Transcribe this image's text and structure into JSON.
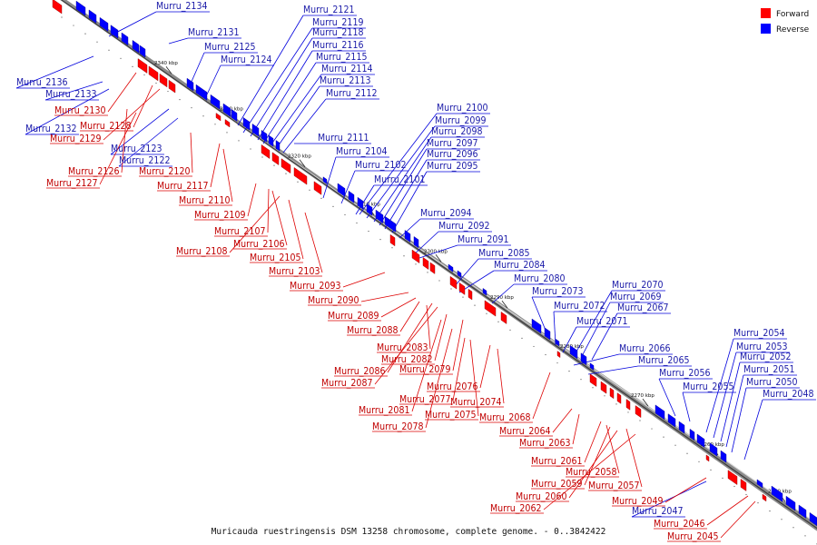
{
  "caption": "Muricauda ruestringensis DSM 13258 chromosome, complete genome. - 0..3842422",
  "legend": [
    {
      "label": "Forward",
      "color": "#ff0000"
    },
    {
      "label": "Reverse",
      "color": "#0000ff"
    }
  ],
  "colors": {
    "forward": "#ff0000",
    "reverse": "#0000ff",
    "forward_line": "#dd0000",
    "reverse_line": "#0000dd"
  },
  "ticks": [
    "2340 kbp",
    "2330 kbp",
    "2320 kbp",
    "2310 kbp",
    "2300 kbp",
    "2290 kbp",
    "2280 kbp",
    "2270 kbp",
    "2260 kbp",
    "2250 kbp"
  ],
  "reverse_labels": [
    "Murru_2134",
    "Murru_2131",
    "Murru_2125",
    "Murru_2124",
    "Murru_2121",
    "Murru_2119",
    "Murru_2118",
    "Murru_2116",
    "Murru_2115",
    "Murru_2114",
    "Murru_2113",
    "Murru_2112",
    "Murru_2136",
    "Murru_2133",
    "Murru_2132",
    "Murru_2123",
    "Murru_2122",
    "Murru_2111",
    "Murru_2104",
    "Murru_2102",
    "Murru_2101",
    "Murru_2100",
    "Murru_2099",
    "Murru_2098",
    "Murru_2097",
    "Murru_2096",
    "Murru_2095",
    "Murru_2094",
    "Murru_2092",
    "Murru_2091",
    "Murru_2085",
    "Murru_2084",
    "Murru_2080",
    "Murru_2073",
    "Murru_2072",
    "Murru_2071",
    "Murru_2070",
    "Murru_2069",
    "Murru_2067",
    "Murru_2066",
    "Murru_2065",
    "Murru_2056",
    "Murru_2055",
    "Murru_2054",
    "Murru_2053",
    "Murru_2052",
    "Murru_2051",
    "Murru_2050",
    "Murru_2048",
    "Murru_2047"
  ],
  "forward_labels": [
    "Murru_2130",
    "Murru_2128",
    "Murru_2129",
    "Murru_2126",
    "Murru_2127",
    "Murru_2120",
    "Murru_2117",
    "Murru_2110",
    "Murru_2109",
    "Murru_2107",
    "Murru_2106",
    "Murru_2108",
    "Murru_2105",
    "Murru_2103",
    "Murru_2093",
    "Murru_2090",
    "Murru_2089",
    "Murru_2088",
    "Murru_2083",
    "Murru_2082",
    "Murru_2079",
    "Murru_2086",
    "Murru_2087",
    "Murru_2076",
    "Murru_2077",
    "Murru_2074",
    "Murru_2081",
    "Murru_2075",
    "Murru_2078",
    "Murru_2068",
    "Murru_2064",
    "Murru_2063",
    "Murru_2061",
    "Murru_2058",
    "Murru_2059",
    "Murru_2057",
    "Murru_2060",
    "Murru_2062",
    "Murru_2049",
    "Murru_2046",
    "Murru_2045"
  ]
}
